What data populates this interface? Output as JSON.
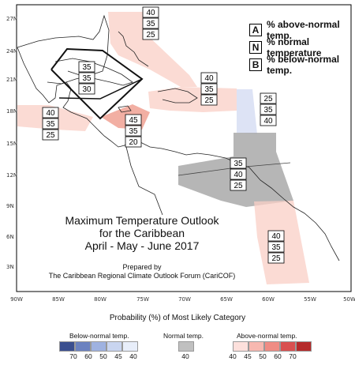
{
  "title_lines": [
    "Maximum Temperature Outlook",
    "for the Caribbean",
    "April - May - June 2017"
  ],
  "prepared_lines": [
    "Prepared by",
    "The Caribbean Regional Climate Outlook Forum (CariCOF)"
  ],
  "key": [
    {
      "letter": "A",
      "text": "% above-normal temp."
    },
    {
      "letter": "N",
      "text": "% normal temperature"
    },
    {
      "letter": "B",
      "text": "% below-normal temp."
    }
  ],
  "lat_labels": [
    "27N",
    "24N",
    "21N",
    "18N",
    "15N",
    "12N",
    "9N",
    "6N",
    "3N"
  ],
  "lon_labels": [
    "90W",
    "85W",
    "80W",
    "75W",
    "70W",
    "65W",
    "60W",
    "55W",
    "50W"
  ],
  "regions": [
    {
      "name": "bahamas",
      "values": [
        "40",
        "35",
        "25"
      ]
    },
    {
      "name": "cuba",
      "values": [
        "35",
        "35",
        "30"
      ]
    },
    {
      "name": "central-america-north",
      "values": [
        "40",
        "35",
        "25"
      ]
    },
    {
      "name": "jamaica",
      "values": [
        "45",
        "35",
        "20"
      ]
    },
    {
      "name": "hispaniola",
      "values": [
        "40",
        "35",
        "25"
      ]
    },
    {
      "name": "lesser-antilles-north",
      "values": [
        "25",
        "35",
        "40"
      ]
    },
    {
      "name": "southern-caribbean",
      "values": [
        "35",
        "40",
        "25"
      ]
    },
    {
      "name": "guianas",
      "values": [
        "40",
        "35",
        "25"
      ]
    }
  ],
  "legend": {
    "title": "Probability (%) of Most Likely Category",
    "below_label": "Below-normal temp.",
    "normal_label": "Normal temp.",
    "above_label": "Above-normal temp.",
    "below_ticks": [
      "70",
      "60",
      "50",
      "45",
      "40"
    ],
    "normal_ticks": [
      "40"
    ],
    "above_ticks": [
      "40",
      "45",
      "50",
      "60",
      "70"
    ],
    "below_colors": [
      "#3b4f8f",
      "#6b82c0",
      "#9fb2e0",
      "#c9d5f0",
      "#e8eefa"
    ],
    "normal_color": "#c0c0c0",
    "above_colors": [
      "#fde0dc",
      "#f7b8b0",
      "#ef8c84",
      "#d95050",
      "#b52a2a"
    ]
  }
}
